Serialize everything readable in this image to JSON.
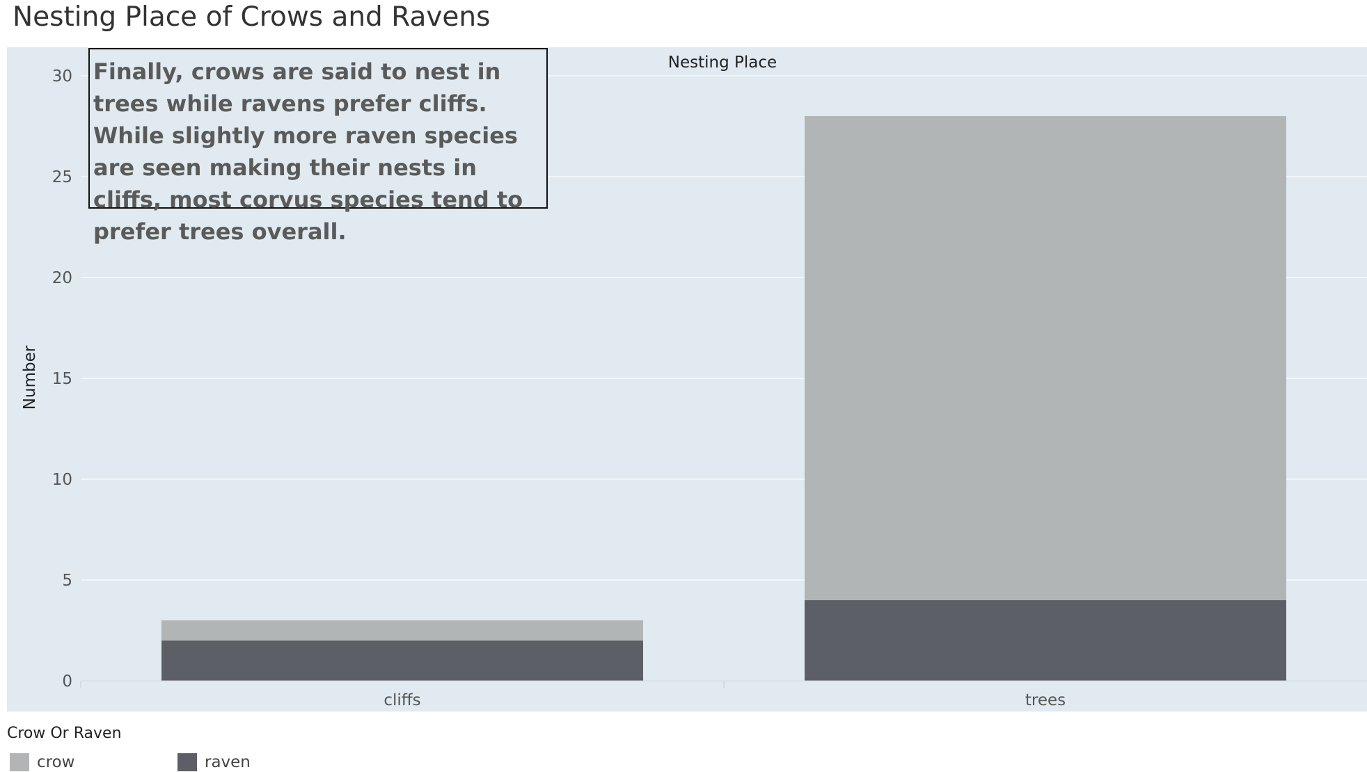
{
  "title": "Nesting Place of Crows and Ravens",
  "annotation": "Finally, crows are said to nest in trees while ravens prefer cliffs. While slightly more raven species are seen making their nests in cliffs, most corvus species tend to prefer trees overall.",
  "legend": {
    "title": "Crow Or Raven",
    "items": [
      {
        "label": "crow",
        "color": "#b2b5b6"
      },
      {
        "label": "raven",
        "color": "#5c5f66"
      }
    ]
  },
  "colors": {
    "plot_background": "#e0eaf0",
    "gridline": "#f2f6f8",
    "crow": "#b2b5b6",
    "raven": "#5c5f66"
  },
  "chart_data": {
    "type": "bar",
    "stacked": true,
    "header": "Nesting Place",
    "categories": [
      "cliffs",
      "trees"
    ],
    "series": [
      {
        "name": "raven",
        "values": [
          2,
          4
        ]
      },
      {
        "name": "crow",
        "values": [
          1,
          24
        ]
      }
    ],
    "ylabel": "Number",
    "xlabel": "",
    "yticks": [
      0,
      5,
      10,
      15,
      20,
      25,
      30
    ],
    "ylim": [
      0,
      30
    ],
    "grid": true,
    "legend_position": "bottom-left"
  }
}
